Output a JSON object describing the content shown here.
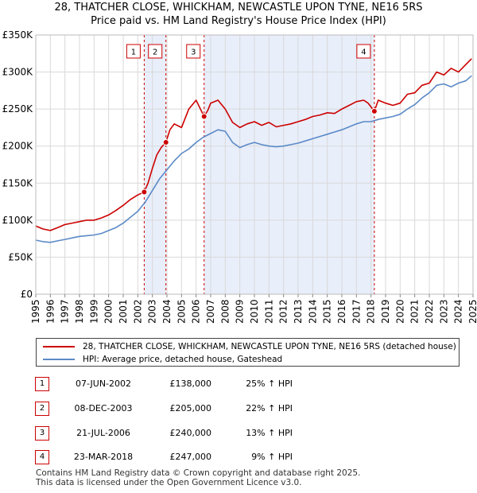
{
  "title_line1": "28, THATCHER CLOSE, WHICKHAM, NEWCASTLE UPON TYNE, NE16 5RS",
  "title_line2": "Price paid vs. HM Land Registry's House Price Index (HPI)",
  "chart_data": {
    "type": "line",
    "title": "28, THATCHER CLOSE, WHICKHAM, NEWCASTLE UPON TYNE, NE16 5RS — Price paid vs. HM Land Registry's House Price Index (HPI)",
    "xlabel": "",
    "ylabel": "",
    "xlim": [
      1995,
      2025
    ],
    "ylim": [
      0,
      350000
    ],
    "x_ticks": [
      "1995",
      "1996",
      "1997",
      "1998",
      "1999",
      "2000",
      "2001",
      "2002",
      "2003",
      "2004",
      "2005",
      "2006",
      "2007",
      "2008",
      "2009",
      "2010",
      "2011",
      "2012",
      "2013",
      "2014",
      "2015",
      "2016",
      "2017",
      "2018",
      "2019",
      "2020",
      "2021",
      "2022",
      "2023",
      "2024",
      "2025"
    ],
    "y_ticks": [
      {
        "value": 0,
        "label": "£0"
      },
      {
        "value": 50000,
        "label": "£50K"
      },
      {
        "value": 100000,
        "label": "£100K"
      },
      {
        "value": 150000,
        "label": "£150K"
      },
      {
        "value": 200000,
        "label": "£200K"
      },
      {
        "value": 250000,
        "label": "£250K"
      },
      {
        "value": 300000,
        "label": "£300K"
      },
      {
        "value": 350000,
        "label": "£350K"
      }
    ],
    "grid": true,
    "series": [
      {
        "name": "28, THATCHER CLOSE, WHICKHAM, NEWCASTLE UPON TYNE, NE16 5RS (detached house)",
        "color": "#cc0000",
        "x": [
          1995.0,
          1995.5,
          1996.0,
          1996.5,
          1997.0,
          1997.5,
          1998.0,
          1998.5,
          1999.0,
          1999.5,
          2000.0,
          2000.5,
          2001.0,
          2001.5,
          2002.0,
          2002.44,
          2002.7,
          2003.0,
          2003.3,
          2003.6,
          2003.93,
          2004.2,
          2004.5,
          2005.0,
          2005.5,
          2006.0,
          2006.55,
          2006.8,
          2007.0,
          2007.5,
          2008.0,
          2008.5,
          2009.0,
          2009.5,
          2010.0,
          2010.5,
          2011.0,
          2011.5,
          2012.0,
          2012.5,
          2013.0,
          2013.5,
          2014.0,
          2014.5,
          2015.0,
          2015.5,
          2016.0,
          2016.5,
          2017.0,
          2017.5,
          2017.8,
          2018.23,
          2018.5,
          2019.0,
          2019.5,
          2020.0,
          2020.5,
          2021.0,
          2021.5,
          2022.0,
          2022.5,
          2023.0,
          2023.5,
          2024.0,
          2024.5,
          2024.9
        ],
        "y": [
          92000,
          88000,
          86000,
          90000,
          94000,
          96000,
          98000,
          100000,
          100000,
          103000,
          107000,
          113000,
          120000,
          128000,
          134000,
          138000,
          150000,
          170000,
          188000,
          198000,
          205000,
          222000,
          230000,
          225000,
          250000,
          262000,
          240000,
          248000,
          258000,
          262000,
          250000,
          232000,
          225000,
          230000,
          233000,
          228000,
          232000,
          226000,
          228000,
          230000,
          233000,
          236000,
          240000,
          242000,
          245000,
          244000,
          250000,
          255000,
          260000,
          262000,
          258000,
          247000,
          262000,
          258000,
          255000,
          258000,
          270000,
          272000,
          282000,
          285000,
          300000,
          296000,
          305000,
          300000,
          310000,
          318000
        ]
      },
      {
        "name": "HPI: Average price, detached house, Gateshead",
        "color": "#5b8ac7",
        "x": [
          1995.0,
          1995.5,
          1996.0,
          1996.5,
          1997.0,
          1997.5,
          1998.0,
          1998.5,
          1999.0,
          1999.5,
          2000.0,
          2000.5,
          2001.0,
          2001.5,
          2002.0,
          2002.5,
          2003.0,
          2003.5,
          2004.0,
          2004.5,
          2005.0,
          2005.5,
          2006.0,
          2006.5,
          2007.0,
          2007.5,
          2008.0,
          2008.5,
          2009.0,
          2009.5,
          2010.0,
          2010.5,
          2011.0,
          2011.5,
          2012.0,
          2012.5,
          2013.0,
          2013.5,
          2014.0,
          2014.5,
          2015.0,
          2015.5,
          2016.0,
          2016.5,
          2017.0,
          2017.5,
          2018.0,
          2018.5,
          2019.0,
          2019.5,
          2020.0,
          2020.5,
          2021.0,
          2021.5,
          2022.0,
          2022.5,
          2023.0,
          2023.5,
          2024.0,
          2024.5,
          2024.9
        ],
        "y": [
          73000,
          71000,
          70000,
          72000,
          74000,
          76000,
          78000,
          79000,
          80000,
          82000,
          86000,
          90000,
          96000,
          104000,
          112000,
          124000,
          140000,
          156000,
          168000,
          180000,
          190000,
          196000,
          205000,
          212000,
          217000,
          222000,
          220000,
          205000,
          198000,
          202000,
          205000,
          202000,
          200000,
          199000,
          200000,
          202000,
          204000,
          207000,
          210000,
          213000,
          216000,
          219000,
          222000,
          226000,
          230000,
          233000,
          233000,
          236000,
          238000,
          240000,
          243000,
          250000,
          256000,
          265000,
          272000,
          282000,
          284000,
          280000,
          285000,
          288000,
          295000
        ]
      }
    ],
    "sales": [
      {
        "num": "1",
        "date": "07-JUN-2002",
        "x": 2002.44,
        "price": 138000,
        "price_label": "£138,000",
        "hpi": "25% ↑ HPI"
      },
      {
        "num": "2",
        "date": "08-DEC-2003",
        "x": 2003.93,
        "price": 205000,
        "price_label": "£205,000",
        "hpi": "22% ↑ HPI"
      },
      {
        "num": "3",
        "date": "21-JUL-2006",
        "x": 2006.55,
        "price": 240000,
        "price_label": "£240,000",
        "hpi": "13% ↑ HPI"
      },
      {
        "num": "4",
        "date": "23-MAR-2018",
        "x": 2018.23,
        "price": 247000,
        "price_label": "£247,000",
        "hpi": "9% ↑ HPI"
      }
    ],
    "shaded_periods": [
      [
        2002.44,
        2003.93
      ],
      [
        2006.55,
        2018.23
      ]
    ]
  },
  "legend": {
    "property": "28, THATCHER CLOSE, WHICKHAM, NEWCASTLE UPON TYNE, NE16 5RS (detached house)",
    "hpi": "HPI: Average price, detached house, Gateshead"
  },
  "colors": {
    "property": "#cc0000",
    "hpi": "#5b8ac7",
    "shade": "#e8eefa",
    "grid": "#d9d9d9",
    "marker_border": "#cc0000"
  },
  "footer_line1": "Contains HM Land Registry data © Crown copyright and database right 2025.",
  "footer_line2": "This data is licensed under the Open Government Licence v3.0."
}
